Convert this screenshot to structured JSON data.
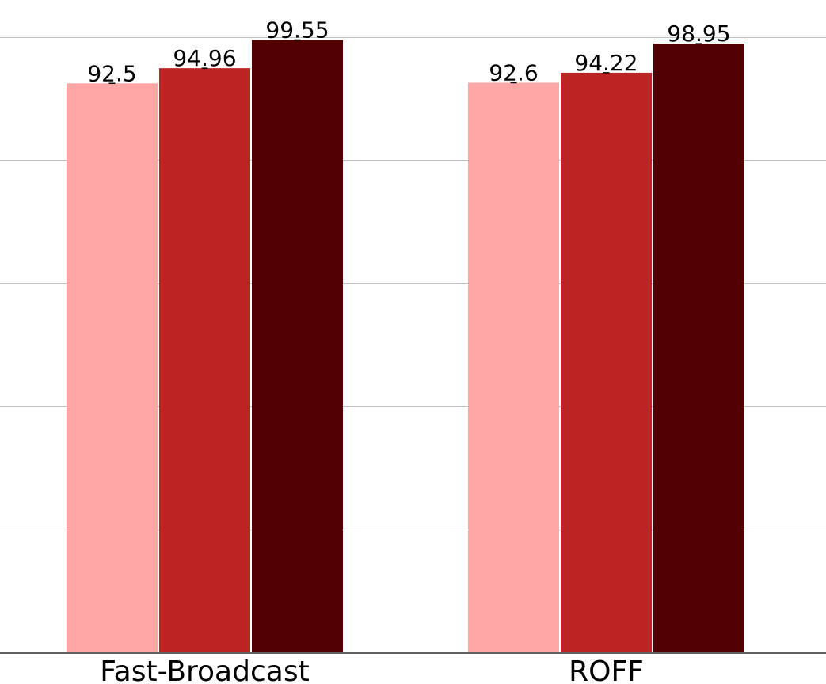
{
  "chart_data": {
    "type": "bar",
    "categories": [
      "Fast-Broadcast",
      "ROFF"
    ],
    "series": [
      {
        "values": [
          92.5,
          92.6
        ],
        "color": "#ffa6a6"
      },
      {
        "values": [
          94.96,
          94.22
        ],
        "color": "#bc2323"
      },
      {
        "values": [
          99.55,
          98.95
        ],
        "color": "#500000"
      }
    ],
    "value_labels": [
      [
        "92.5",
        "92.6"
      ],
      [
        "94.96",
        "94.22"
      ],
      [
        "99.55",
        "98.95"
      ]
    ],
    "ylim": [
      0,
      100
    ],
    "grid": true,
    "title": "",
    "xlabel": "",
    "ylabel": ""
  }
}
